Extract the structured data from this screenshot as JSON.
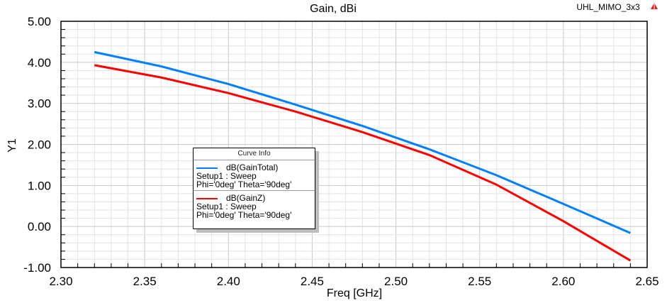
{
  "header": {
    "project": "UHL_MIMO_3x3",
    "logo_icon": "ansys-triangle-icon"
  },
  "chart_data": {
    "type": "line",
    "title": "Gain, dBi",
    "xlabel": "Freq [GHz]",
    "ylabel": "Y1",
    "xlim": [
      2.3,
      2.65
    ],
    "ylim": [
      -1.0,
      5.0
    ],
    "xticks": [
      "2.30",
      "2.35",
      "2.40",
      "2.45",
      "2.50",
      "2.55",
      "2.60",
      "2.65"
    ],
    "yticks": [
      "-1.00",
      "0.00",
      "1.00",
      "2.00",
      "3.00",
      "4.00",
      "5.00"
    ],
    "grid": true,
    "legend_title": "Curve Info",
    "legend_position": "center-left",
    "x": [
      2.32,
      2.36,
      2.4,
      2.44,
      2.48,
      2.52,
      2.56,
      2.6,
      2.64
    ],
    "series": [
      {
        "name": "dB(GainTotal)",
        "setup": "Setup1 : Sweep",
        "params": "Phi='0deg' Theta='90deg'",
        "color": "#0080ff",
        "values": [
          4.25,
          3.9,
          3.47,
          2.97,
          2.45,
          1.88,
          1.25,
          0.55,
          -0.16
        ]
      },
      {
        "name": "dB(GainZ)",
        "setup": "Setup1 : Sweep",
        "params": "Phi='0deg' Theta='90deg'",
        "color": "#ff0000",
        "values": [
          3.93,
          3.63,
          3.25,
          2.8,
          2.3,
          1.74,
          1.02,
          0.13,
          -0.83
        ]
      }
    ]
  }
}
